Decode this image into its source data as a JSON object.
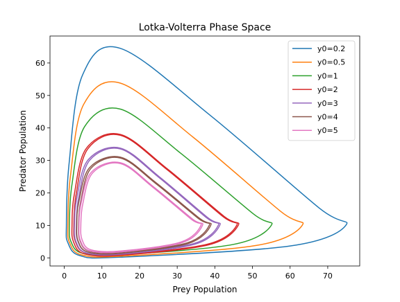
{
  "chart_data": {
    "type": "line",
    "title": "Lotka-Volterra Phase Space",
    "xlabel": "Prey Population",
    "ylabel": "Predator Population",
    "xlim": [
      -3.8,
      78.5
    ],
    "ylim": [
      -2.5,
      68.3
    ],
    "xticks": [
      0,
      10,
      20,
      30,
      40,
      50,
      60,
      70
    ],
    "yticks": [
      0,
      10,
      20,
      30,
      40,
      50,
      60
    ],
    "grid": false,
    "legend_position": "top-right",
    "series": [
      {
        "name": "y0=0.2",
        "color": "#1f77b4",
        "x_extent": [
          0.55,
          74.8
        ],
        "y_extent": [
          0.2,
          64.5
        ],
        "x_at_ymax": 14.9,
        "y_at_xmax": 10.0
      },
      {
        "name": "y0=0.5",
        "color": "#ff7f0e",
        "x_extent": [
          0.95,
          63.2
        ],
        "y_extent": [
          0.5,
          53.8
        ],
        "x_at_ymax": 14.9,
        "y_at_xmax": 10.0
      },
      {
        "name": "y0=1",
        "color": "#2ca02c",
        "x_extent": [
          1.35,
          55.0
        ],
        "y_extent": [
          1.0,
          45.8
        ],
        "x_at_ymax": 14.9,
        "y_at_xmax": 10.0
      },
      {
        "name": "y0=2",
        "color": "#d62728",
        "x_extent": [
          2.05,
          46.2
        ],
        "y_extent": [
          0.8,
          38.0
        ],
        "x_at_ymax": 14.9,
        "y_at_xmax": 10.0
      },
      {
        "name": "y0=3",
        "color": "#9467bd",
        "x_extent": [
          2.7,
          41.3
        ],
        "y_extent": [
          1.1,
          33.8
        ],
        "x_at_ymax": 14.9,
        "y_at_xmax": 10.0
      },
      {
        "name": "y0=4",
        "color": "#8c564b",
        "x_extent": [
          3.3,
          38.9
        ],
        "y_extent": [
          1.4,
          31.0
        ],
        "x_at_ymax": 14.9,
        "y_at_xmax": 10.0
      },
      {
        "name": "y0=5",
        "color": "#e377c2",
        "x_extent": [
          3.9,
          36.7
        ],
        "y_extent": [
          1.8,
          29.3
        ],
        "x_at_ymax": 14.9,
        "y_at_xmax": 10.0
      }
    ]
  }
}
